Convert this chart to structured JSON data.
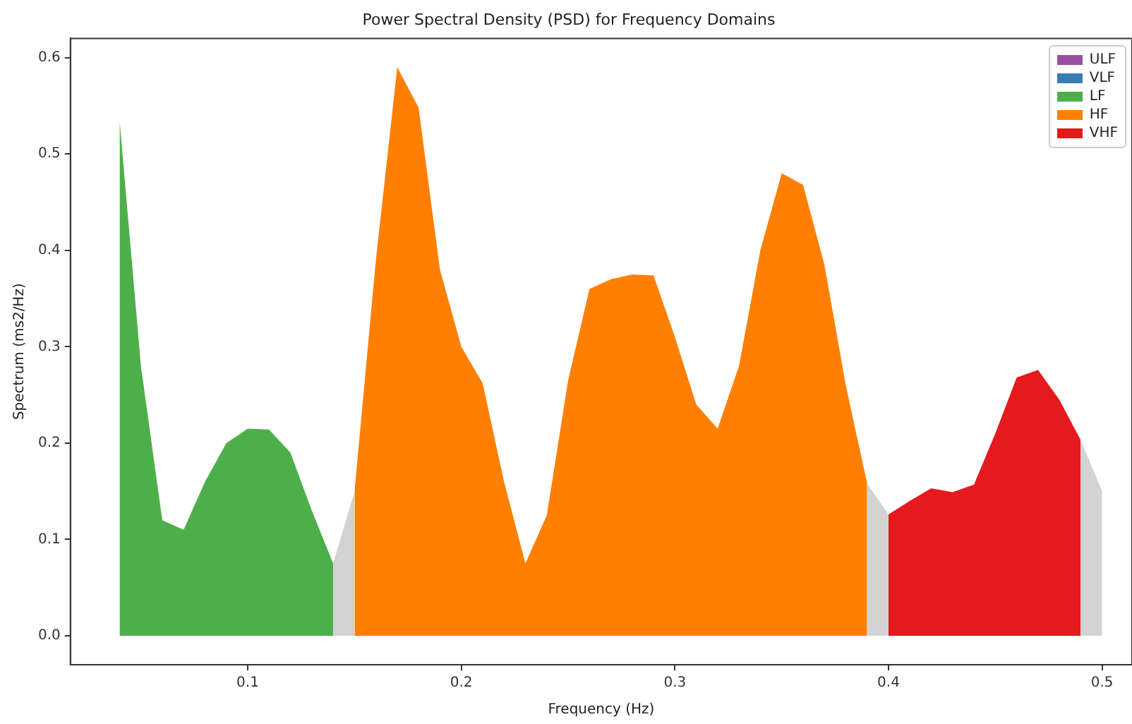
{
  "chart_data": {
    "type": "area",
    "title": "Power Spectral Density (PSD) for Frequency Domains",
    "xlabel": "Frequency (Hz)",
    "ylabel": "Spectrum (ms2/Hz)",
    "xlim": [
      0.017,
      0.514
    ],
    "xticks": [
      0.1,
      0.2,
      0.3,
      0.4,
      0.5
    ],
    "ylim": [
      -0.03,
      0.62
    ],
    "yticks": [
      {
        "value": 0,
        "label": "0.0"
      },
      0.1,
      0.2,
      0.3,
      0.4,
      0.5,
      0.6
    ],
    "grid": false,
    "legend": "top right",
    "marker": "none",
    "series": [
      {
        "name": "ULF",
        "color": "#984ea3"
      },
      {
        "name": "VLF",
        "color": "#377eb8"
      },
      {
        "name": "LF",
        "color": "#4daf4a",
        "x": [
          0.04,
          0.05,
          0.06,
          0.07,
          0.08,
          0.09,
          0.1,
          0.11,
          0.12,
          0.13,
          0.14
        ],
        "values": [
          0.535,
          0.28,
          0.12,
          0.11,
          0.16,
          0.2,
          0.215,
          0.214,
          0.19,
          0.13,
          0.075
        ]
      },
      {
        "name": "HF",
        "color": "#ff7f00",
        "x": [
          0.15,
          0.16,
          0.17,
          0.18,
          0.19,
          0.2,
          0.21,
          0.22,
          0.23,
          0.24,
          0.25,
          0.26,
          0.27,
          0.28,
          0.29,
          0.3,
          0.31,
          0.32,
          0.33,
          0.34,
          0.35,
          0.36,
          0.37,
          0.38,
          0.39
        ],
        "values": [
          0.15,
          0.39,
          0.59,
          0.548,
          0.38,
          0.3,
          0.262,
          0.16,
          0.075,
          0.125,
          0.265,
          0.36,
          0.37,
          0.375,
          0.374,
          0.31,
          0.24,
          0.215,
          0.28,
          0.4,
          0.48,
          0.468,
          0.385,
          0.26,
          0.158
        ]
      },
      {
        "name": "VHF",
        "color": "#e41a1c",
        "x": [
          0.4,
          0.41,
          0.42,
          0.43,
          0.44,
          0.45,
          0.46,
          0.47,
          0.48,
          0.49
        ],
        "values": [
          0.126,
          0.14,
          0.153,
          0.149,
          0.157,
          0.21,
          0.268,
          0.276,
          0.245,
          0.203
        ]
      },
      {
        "color": "#d3d3d3",
        "x": [
          0.14,
          0.15
        ],
        "values": [
          0.075,
          0.15
        ]
      },
      {
        "color": "#d3d3d3",
        "x": [
          0.39,
          0.4
        ],
        "values": [
          0.158,
          0.126
        ]
      },
      {
        "color": "#d3d3d3",
        "x": [
          0.49,
          0.5
        ],
        "values": [
          0.203,
          0.15
        ]
      }
    ]
  }
}
